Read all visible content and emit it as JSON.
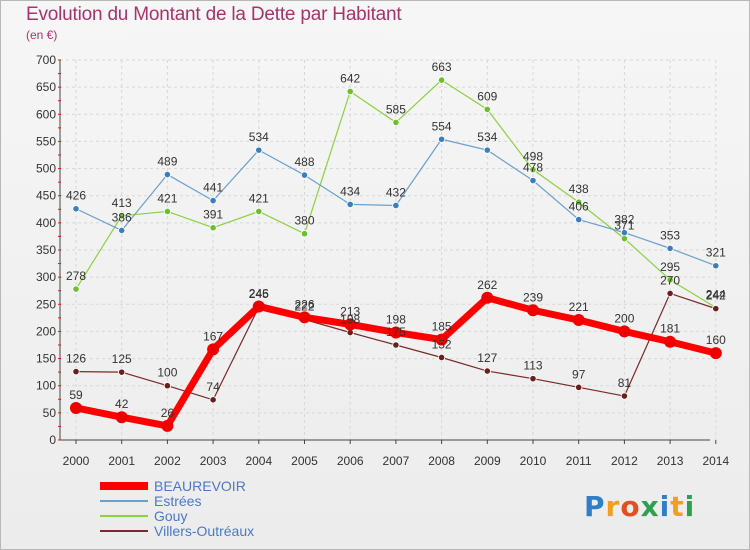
{
  "header": {
    "title": "Evolution du Montant de la Dette par Habitant",
    "unit": "(en €)"
  },
  "logo": {
    "text": "Proxiti"
  },
  "colors": {
    "title": "#a8336b",
    "legend_text": "#4a78c8"
  },
  "chart_data": {
    "type": "line",
    "x": [
      "2000",
      "2001",
      "2002",
      "2003",
      "2004",
      "2005",
      "2006",
      "2007",
      "2008",
      "2009",
      "2010",
      "2011",
      "2012",
      "2013",
      "2014"
    ],
    "ylim": [
      0,
      700
    ],
    "yticks": [
      0,
      50,
      100,
      150,
      200,
      250,
      300,
      350,
      400,
      450,
      500,
      550,
      600,
      650,
      700
    ],
    "grid": true,
    "legend": "bottom-left",
    "series": [
      {
        "name": "Gouy",
        "color": "#8cd13f",
        "marker": "#6cbf2a",
        "width": 1.2,
        "r": 3.2,
        "values": [
          278,
          413,
          421,
          391,
          421,
          380,
          642,
          585,
          663,
          609,
          498,
          438,
          371,
          295,
          244
        ]
      },
      {
        "name": "Estrées",
        "color": "#6aa0cf",
        "marker": "#3a7ec0",
        "width": 1.2,
        "r": 3.2,
        "values": [
          426,
          386,
          489,
          441,
          534,
          488,
          434,
          432,
          554,
          534,
          478,
          406,
          382,
          353,
          321
        ]
      },
      {
        "name": "Villers-Outréaux",
        "color": "#7a2a2a",
        "marker": "#6b1e1e",
        "width": 1.2,
        "r": 3.2,
        "values": [
          126,
          125,
          100,
          74,
          245,
          222,
          198,
          175,
          152,
          127,
          113,
          97,
          81,
          270,
          242
        ]
      },
      {
        "name": "BEAUREVOIR",
        "color": "#ff0000",
        "marker": "#ee0000",
        "width": 7,
        "r": 6,
        "values": [
          59,
          42,
          26,
          167,
          246,
          226,
          213,
          198,
          185,
          262,
          239,
          221,
          200,
          181,
          160
        ]
      }
    ],
    "legend_order": [
      "BEAUREVOIR",
      "Estrées",
      "Gouy",
      "Villers-Outréaux"
    ]
  }
}
